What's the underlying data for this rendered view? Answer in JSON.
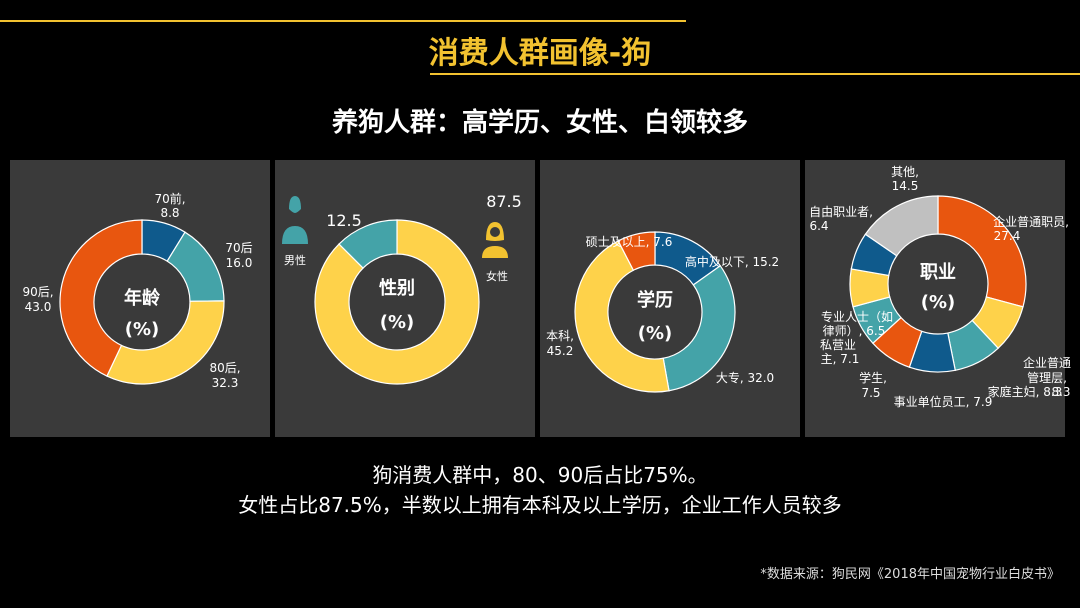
{
  "title": "消费人群画像-狗",
  "subtitle": "养狗人群：高学历、女性、白领较多",
  "summary": [
    "狗消费人群中，80、90后占比75%。",
    "女性占比87.5%，半数以上拥有本科及以上学历，企业工作人员较多"
  ],
  "source": "*数据来源：狗民网《2018年中国宠物行业白皮书》",
  "colors": {
    "accent": "#f2c230",
    "blue": "#0f5a8c",
    "teal": "#44a3a8",
    "yellow": "#fed24a",
    "orange": "#e8560f",
    "gray": "#c0c0c0",
    "panel": "#3a3a3a"
  },
  "chart_data": [
    {
      "type": "pie",
      "title": "年龄",
      "unit": "(%)",
      "slices": [
        {
          "label": "70前",
          "value": 8.8,
          "color": "#0f5a8c"
        },
        {
          "label": "70后",
          "value": 16.0,
          "color": "#44a3a8"
        },
        {
          "label": "80后",
          "value": 32.3,
          "color": "#fed24a"
        },
        {
          "label": "90后",
          "value": 43.0,
          "color": "#e8560f"
        }
      ]
    },
    {
      "type": "pie",
      "title": "性别",
      "unit": "(%)",
      "slices": [
        {
          "label": "女性",
          "value": 87.5,
          "color": "#fed24a"
        },
        {
          "label": "男性",
          "value": 12.5,
          "color": "#44a3a8"
        }
      ]
    },
    {
      "type": "pie",
      "title": "学历",
      "unit": "(%)",
      "slices": [
        {
          "label": "高中及以下",
          "value": 15.2,
          "color": "#0f5a8c"
        },
        {
          "label": "大专",
          "value": 32.0,
          "color": "#44a3a8"
        },
        {
          "label": "本科",
          "value": 45.2,
          "color": "#fed24a"
        },
        {
          "label": "硕士及以上",
          "value": 7.6,
          "color": "#e8560f"
        }
      ]
    },
    {
      "type": "pie",
      "title": "职业",
      "unit": "(%)",
      "slices": [
        {
          "label": "企业普通职员",
          "value": 27.4,
          "color": "#e8560f"
        },
        {
          "label": "企业普通管理层",
          "value": 8.3,
          "color": "#fed24a"
        },
        {
          "label": "家庭主妇",
          "value": 8.3,
          "color": "#44a3a8"
        },
        {
          "label": "事业单位员工",
          "value": 7.9,
          "color": "#0f5a8c"
        },
        {
          "label": "学生",
          "value": 7.5,
          "color": "#e8560f"
        },
        {
          "label": "私营业主",
          "value": 7.1,
          "color": "#44a3a8"
        },
        {
          "label": "专业人士（如律师）",
          "value": 6.5,
          "color": "#fed24a"
        },
        {
          "label": "自由职业者",
          "value": 6.4,
          "color": "#0f5a8c"
        },
        {
          "label": "其他",
          "value": 14.5,
          "color": "#c0c0c0"
        }
      ]
    }
  ],
  "labels": {
    "age": [
      "70前,",
      "8.8",
      "70后",
      "16.0",
      "80后,",
      "32.3",
      "90后,",
      "43.0"
    ],
    "gender": [
      "12.5",
      "87.5",
      "男性",
      "女性"
    ],
    "edu": [
      "硕士及以上, 7.6",
      "高中及以下, 15.2",
      "大专, 32.0",
      "本科,",
      "45.2"
    ],
    "job": [
      "其他,",
      "14.5",
      "自由职业者,",
      "6.4",
      "企业普通职员,",
      "27.4",
      "专业人士（如",
      "律师）, 6.5",
      "私营业",
      "主, 7.1",
      "企业普通",
      "管理层,",
      "8.3",
      "家庭主妇, 8.3",
      "学生,",
      "7.5",
      "事业单位员工, 7.9"
    ]
  }
}
